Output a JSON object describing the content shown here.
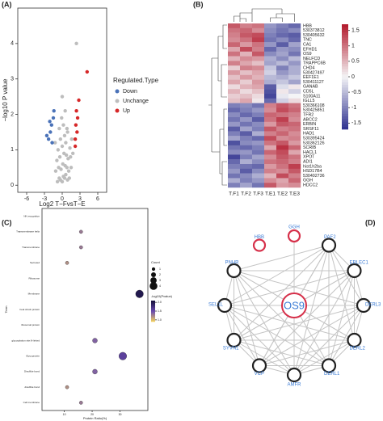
{
  "chart_data": [
    {
      "type": "volcano",
      "panel": "(A)",
      "x_label": "Log2 T−FvsT−E",
      "y_label": "−log10 P value",
      "legend_title": "Regulated.Type",
      "xlim": [
        -7.5,
        7.5
      ],
      "xticks": [
        -6,
        -3,
        0,
        3,
        6
      ],
      "ylim": [
        -0.2,
        5.0
      ],
      "yticks": [
        0,
        1,
        2,
        3,
        4
      ],
      "series": [
        {
          "name": "Down",
          "color": "#4a72b8",
          "x": [
            -2.3,
            -2.0,
            -1.8,
            -1.5,
            -2.6,
            -1.4,
            -1.7,
            -2.1
          ],
          "values": [
            1.3,
            1.5,
            1.7,
            1.9,
            1.4,
            2.1,
            1.2,
            1.8
          ]
        },
        {
          "name": "Unchange",
          "color": "#bdbdbd",
          "x": [
            -0.8,
            -0.5,
            -0.3,
            0,
            0.2,
            0.4,
            0.6,
            0.9,
            1.2,
            -1.1,
            -0.6,
            -0.2,
            0.1,
            0.5,
            0.8,
            1.1,
            1.5,
            -0.9,
            -0.4,
            0.3,
            0.7,
            1.0,
            1.4,
            1.8,
            -0.7,
            0,
            0.6,
            1.3,
            -0.3,
            0.4,
            0.9,
            2.4,
            -1.2,
            1.6,
            0.2,
            -0.1,
            0.5,
            0.8,
            0.0,
            -0.5
          ],
          "values": [
            0.1,
            0.2,
            0.15,
            0.1,
            0.25,
            0.2,
            0.3,
            0.15,
            0.2,
            0.4,
            0.5,
            0.45,
            0.6,
            0.55,
            0.5,
            0.4,
            0.5,
            0.7,
            0.8,
            0.9,
            0.85,
            0.75,
            0.8,
            0.9,
            1.0,
            1.1,
            1.2,
            1.05,
            1.3,
            1.4,
            1.5,
            4.0,
            1.2,
            1.3,
            1.7,
            1.9,
            2.1,
            1.6,
            2.5,
            1.6
          ]
        },
        {
          "name": "Up",
          "color": "#d62728",
          "x": [
            2.2,
            2.5,
            2.3,
            2.6,
            2.4,
            2.8,
            4.2,
            2.2
          ],
          "values": [
            1.3,
            1.5,
            1.7,
            1.9,
            2.1,
            2.4,
            3.2,
            1.1
          ]
        }
      ]
    },
    {
      "type": "heatmap",
      "panel": "(B)",
      "columns": [
        "T.F1",
        "T.F2",
        "T.F3",
        "T.E1",
        "T.E2",
        "T.E3"
      ],
      "rows": [
        "HBB",
        "530373812",
        "530405632",
        "TNC",
        "CA1",
        "EFHD1",
        "OS9",
        "NELFCD",
        "TRAPPC6B",
        "CHD4",
        "530427497",
        "EEF1E1",
        "530411127",
        "GANAB",
        "CD5L",
        "S100A11",
        "IGLL5",
        "530366108",
        "530425851",
        "TFR2",
        "ABCC2",
        "ERBIN",
        "SRSF11",
        "HAD1",
        "530395424",
        "530362126",
        "SCRIB",
        "HACL1",
        "XPOT",
        "ADI1",
        "hist1h2ba",
        "HSD17B4",
        "530402736",
        "GGH",
        "HDCC2"
      ],
      "values": [
        [
          1.2,
          0.9,
          1.0,
          -0.8,
          -1.0,
          -1.2
        ],
        [
          1.0,
          1.1,
          0.8,
          -0.9,
          -1.1,
          -0.9
        ],
        [
          0.9,
          1.2,
          1.3,
          -1.0,
          -1.2,
          -1.3
        ],
        [
          0.8,
          1.0,
          1.4,
          -1.1,
          -0.9,
          -1.2
        ],
        [
          1.1,
          0.7,
          1.0,
          -0.8,
          -1.3,
          -0.7
        ],
        [
          0.6,
          1.3,
          0.9,
          -1.2,
          -0.8,
          -0.9
        ],
        [
          1.0,
          0.5,
          1.2,
          -0.9,
          -0.7,
          -1.1
        ],
        [
          0.5,
          0.8,
          0.7,
          -0.6,
          -0.9,
          -0.5
        ],
        [
          0.9,
          0.6,
          0.4,
          -0.7,
          -0.5,
          -0.8
        ],
        [
          0.3,
          0.9,
          0.8,
          -0.4,
          -1.0,
          -0.6
        ],
        [
          0.7,
          0.4,
          0.6,
          -0.3,
          -0.8,
          -0.6
        ],
        [
          0.4,
          0.7,
          0.5,
          -0.5,
          -0.6,
          -0.4
        ],
        [
          0.6,
          0.3,
          0.7,
          -0.6,
          -0.4,
          -0.7
        ],
        [
          0.2,
          0.5,
          0.6,
          -1.3,
          -0.2,
          0.1
        ],
        [
          0.5,
          0.2,
          0.4,
          -1.4,
          0.1,
          -0.3
        ],
        [
          0.3,
          0.4,
          0.2,
          -1.5,
          -0.1,
          0.0
        ],
        [
          0.4,
          0.6,
          0.1,
          -1.2,
          -0.3,
          0.2
        ],
        [
          -1.0,
          -0.9,
          -1.1,
          0.9,
          1.2,
          1.0
        ],
        [
          -1.2,
          -1.0,
          -0.8,
          0.8,
          1.3,
          1.1
        ],
        [
          -0.9,
          -1.2,
          -1.0,
          1.1,
          1.0,
          0.9
        ],
        [
          -1.1,
          -0.8,
          -1.3,
          1.0,
          1.4,
          0.8
        ],
        [
          -0.8,
          -1.1,
          -0.9,
          0.7,
          1.2,
          1.1
        ],
        [
          -1.3,
          -0.7,
          -1.0,
          1.2,
          0.9,
          1.0
        ],
        [
          -1.0,
          -1.3,
          -0.6,
          0.9,
          1.1,
          0.8
        ],
        [
          -0.7,
          -1.0,
          -1.2,
          1.3,
          0.8,
          0.9
        ],
        [
          -1.4,
          -0.9,
          -0.8,
          1.0,
          1.2,
          0.7
        ],
        [
          -1.1,
          -1.2,
          -1.0,
          0.6,
          1.5,
          1.1
        ],
        [
          -0.9,
          -0.8,
          -1.1,
          1.1,
          1.3,
          0.6
        ],
        [
          -1.5,
          -1.0,
          -0.7,
          0.8,
          1.2,
          1.0
        ],
        [
          -1.2,
          -0.6,
          -0.9,
          1.0,
          1.1,
          0.9
        ],
        [
          -1.0,
          -1.1,
          -1.2,
          0.7,
          1.0,
          1.4
        ],
        [
          -0.8,
          -1.3,
          -0.9,
          0.9,
          0.8,
          1.2
        ],
        [
          -1.1,
          -0.9,
          -0.6,
          0.5,
          1.3,
          0.9
        ],
        [
          -0.6,
          -1.0,
          -0.8,
          0.8,
          0.6,
          1.1
        ],
        [
          -1.0,
          -0.7,
          -1.1,
          1.2,
          0.7,
          0.8
        ]
      ],
      "colors": {
        "low": "#2c2f8e",
        "mid": "#f4f4f6",
        "high": "#b2182b"
      },
      "zlim": [
        -1.7,
        1.7
      ],
      "zticks": [
        -1.5,
        -1,
        -0.5,
        0,
        0.5,
        1,
        1.5
      ]
    },
    {
      "type": "dot",
      "panel": "(C)",
      "x_label": "Protein Ratio(%)",
      "y_label": "Term",
      "size_title": "Count",
      "color_title": "-log10(Pvalue)",
      "categories": [
        "NK recognition",
        "Transmembrane helix",
        "Transmembrane",
        "Secreted",
        "Ribosome",
        "Membrane",
        "heat shock protein",
        "ribosomal protein",
        "glycosylation site:N-linked",
        "Glycoprotein",
        "Disulfide bond",
        "disulfide bond",
        "Cell membrane"
      ],
      "values": [
        null,
        16,
        16,
        11,
        null,
        37,
        null,
        null,
        21,
        31,
        21,
        11,
        16
      ],
      "sizes": [
        null,
        1,
        1,
        1,
        null,
        4,
        null,
        null,
        2,
        4,
        2,
        1,
        1
      ],
      "pvalues": [
        null,
        1.3,
        1.3,
        1.2,
        null,
        2.0,
        null,
        null,
        1.4,
        1.6,
        1.4,
        1.2,
        1.3
      ],
      "xlim": [
        2,
        40
      ],
      "xticks": [
        10,
        20,
        30
      ],
      "size_ticks": [
        1,
        2,
        3,
        4
      ],
      "zlim": [
        0.9,
        2.1
      ],
      "zticks": [
        {
          "value": 1,
          "label": "1.0"
        },
        {
          "value": 1.5,
          "label": "1.5"
        },
        {
          "value": 2,
          "label": "2.0"
        }
      ],
      "colors": {
        "low": "#f6d55c",
        "mid": "#6a4bb0",
        "high": "#140f3a"
      }
    },
    {
      "type": "network",
      "panel": "(D)",
      "nodes": [
        {
          "label": "GGH",
          "color": "#d6304a"
        },
        {
          "label": "PAF2",
          "color": "#222222"
        },
        {
          "label": "ERLEC1",
          "color": "#222222"
        },
        {
          "label": "DERL3",
          "color": "#222222"
        },
        {
          "label": "DERL2",
          "color": "#222222"
        },
        {
          "label": "DERL1",
          "color": "#222222"
        },
        {
          "label": "AMFR",
          "color": "#222222"
        },
        {
          "label": "VCP",
          "color": "#222222"
        },
        {
          "label": "SYVN1",
          "color": "#222222"
        },
        {
          "label": "SEL1L",
          "color": "#222222"
        },
        {
          "label": "PNHR",
          "color": "#222222"
        },
        {
          "label": "HBB",
          "color": "#d6304a"
        },
        {
          "label": "OS9",
          "color": "#d6304a"
        }
      ],
      "edges": [
        [
          1,
          2
        ],
        [
          1,
          3
        ],
        [
          1,
          4
        ],
        [
          1,
          5
        ],
        [
          1,
          6
        ],
        [
          1,
          7
        ],
        [
          1,
          8
        ],
        [
          1,
          9
        ],
        [
          1,
          10
        ],
        [
          2,
          3
        ],
        [
          2,
          4
        ],
        [
          2,
          5
        ],
        [
          2,
          6
        ],
        [
          2,
          7
        ],
        [
          2,
          8
        ],
        [
          2,
          9
        ],
        [
          2,
          10
        ],
        [
          3,
          4
        ],
        [
          3,
          5
        ],
        [
          3,
          6
        ],
        [
          3,
          7
        ],
        [
          3,
          8
        ],
        [
          3,
          9
        ],
        [
          3,
          10
        ],
        [
          4,
          5
        ],
        [
          4,
          6
        ],
        [
          4,
          7
        ],
        [
          4,
          8
        ],
        [
          4,
          9
        ],
        [
          4,
          10
        ],
        [
          5,
          6
        ],
        [
          5,
          7
        ],
        [
          5,
          8
        ],
        [
          5,
          9
        ],
        [
          5,
          10
        ],
        [
          6,
          7
        ],
        [
          6,
          8
        ],
        [
          6,
          9
        ],
        [
          6,
          10
        ],
        [
          7,
          8
        ],
        [
          7,
          9
        ],
        [
          7,
          10
        ],
        [
          8,
          9
        ],
        [
          8,
          10
        ],
        [
          9,
          10
        ],
        [
          12,
          1
        ],
        [
          12,
          2
        ],
        [
          12,
          3
        ],
        [
          12,
          4
        ],
        [
          12,
          5
        ],
        [
          12,
          6
        ],
        [
          12,
          7
        ],
        [
          12,
          8
        ],
        [
          12,
          9
        ],
        [
          12,
          10
        ],
        [
          0,
          12
        ]
      ]
    }
  ]
}
